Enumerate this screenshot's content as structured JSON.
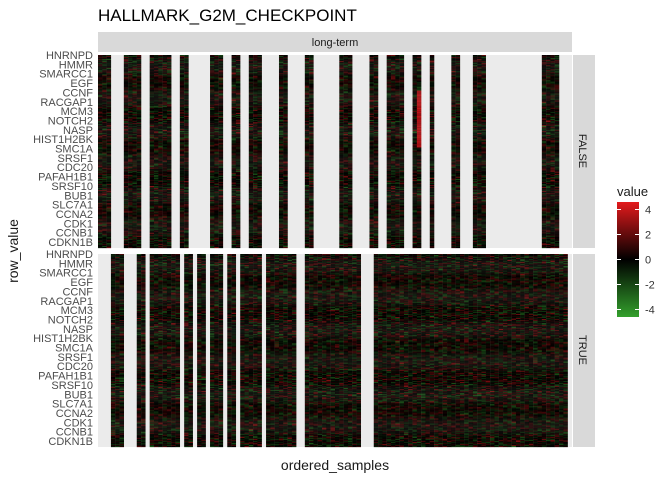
{
  "chart_data": {
    "type": "heatmap",
    "title": "HALLMARK_G2M_CHECKPOINT",
    "xlabel": "ordered_samples",
    "ylabel": "row_value",
    "column_facet": "long-term",
    "row_facets": [
      "FALSE",
      "TRUE"
    ],
    "legend": {
      "title": "value",
      "ticks": [
        4,
        2,
        0,
        -2,
        -4
      ],
      "range": [
        -4.6,
        4.6
      ],
      "colors": {
        "low": "#33a02c",
        "mid": "#000000",
        "high": "#e31a1c"
      }
    },
    "row_labels": {
      "FALSE": [
        "HNRNPD",
        "HMMR",
        "SMARCC1",
        "EGF",
        "CCNF",
        "RACGAP1",
        "MCM3",
        "NOTCH2",
        "NASP",
        "HIST1H2BK",
        "SMC1A",
        "SRSF1",
        "CDC20",
        "PAFAH1B1",
        "SRSF10",
        "BUB1",
        "SLC7A1",
        "CCNA2",
        "CDK1",
        "CCNB1",
        "CDKN1B"
      ],
      "TRUE": [
        "HNRNPD",
        "HMMR",
        "SMARCC1",
        "EGF",
        "CCNF",
        "RACGAP1",
        "MCM3",
        "NOTCH2",
        "NASP",
        "HIST1H2BK",
        "SMC1A",
        "SRSF1",
        "CDC20",
        "PAFAH1B1",
        "SRSF10",
        "BUB1",
        "SLC7A1",
        "CCNA2",
        "CDK1",
        "CCNB1",
        "CDKN1B"
      ]
    },
    "n_rows_per_panel": 190,
    "n_samples": 110,
    "present_samples": {
      "FALSE": [
        0,
        1,
        2,
        6,
        7,
        8,
        9,
        12,
        13,
        14,
        15,
        16,
        19,
        20,
        26,
        27,
        28,
        31,
        32,
        35,
        36,
        37,
        42,
        43,
        48,
        49,
        56,
        57,
        58,
        63,
        64,
        67,
        68,
        69,
        70,
        73,
        74,
        77,
        82,
        83,
        87,
        88,
        89,
        103,
        104,
        105,
        106
      ],
      "TRUE": [
        3,
        4,
        5,
        9,
        10,
        12,
        13,
        14,
        15,
        16,
        17,
        18,
        20,
        21,
        23,
        24,
        26,
        27,
        28,
        30,
        31,
        33,
        34,
        35,
        36,
        37,
        39,
        40,
        41,
        42,
        43,
        44,
        45,
        48,
        49,
        50,
        51,
        52,
        53,
        54,
        55,
        56,
        57,
        58,
        59,
        60,
        64,
        65,
        66,
        67,
        68,
        69,
        70,
        71,
        72,
        73,
        74,
        75,
        76,
        77,
        78,
        79,
        80,
        81,
        82,
        83,
        84,
        85,
        86,
        87,
        88,
        89,
        90,
        91,
        92,
        93,
        94,
        95,
        96,
        97,
        98,
        99,
        100,
        101,
        102,
        103,
        104,
        105,
        106,
        107,
        108
      ]
    },
    "hot_sample_column": 74,
    "hot_region_rows": [
      35,
      90
    ],
    "hot_region_value": 3.5,
    "grid": true
  }
}
